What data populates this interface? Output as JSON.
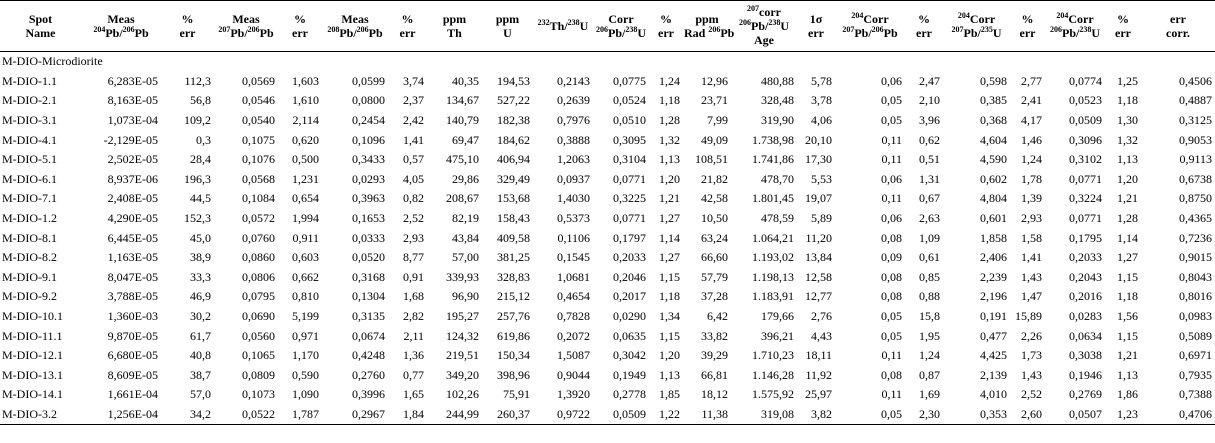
{
  "header": {
    "spot_name": [
      "Spot",
      "Name"
    ],
    "meas_204_206": {
      "top": "Meas",
      "sup1": "204",
      "mid": "Pb/",
      "sup2": "206",
      "end": "Pb"
    },
    "pct_err_1": [
      "%",
      "err"
    ],
    "meas_207_206": {
      "top": "Meas",
      "sup1": "207",
      "mid": "Pb/",
      "sup2": "206",
      "end": "Pb"
    },
    "pct_err_2": [
      "%",
      "err"
    ],
    "meas_208_206": {
      "top": "Meas",
      "sup1": "208",
      "mid": "Pb/",
      "sup2": "206",
      "end": "Pb"
    },
    "pct_err_3": [
      "%",
      "err"
    ],
    "ppm_th": [
      "ppm",
      "Th"
    ],
    "ppm_u": [
      "ppm",
      "U"
    ],
    "th_u": {
      "sup1": "232",
      "mid": "Th/",
      "sup2": "238",
      "end": "U"
    },
    "corr_206_238": {
      "top": "Corr",
      "sup1": "206",
      "mid": "Pb/",
      "sup2": "238",
      "end": "U"
    },
    "pct_err_4": [
      "%",
      "err"
    ],
    "ppm_rad": {
      "top": "ppm",
      "pre": "Rad ",
      "sup1": "206",
      "end": "Pb"
    },
    "age": {
      "sup0": "207",
      "top": "corr",
      "sup1": "206",
      "mid": "Pb/",
      "sup2": "238",
      "end": "U",
      "bottom": "Age"
    },
    "one_sigma": [
      "1σ",
      "err"
    ],
    "c204_207_206": {
      "sup0": "204",
      "top": "Corr",
      "sup1": "207",
      "mid": "Pb/",
      "sup2": "206",
      "end": "Pb"
    },
    "pct_err_5": [
      "%",
      "err"
    ],
    "c204_207_235": {
      "sup0": "204",
      "top": "Corr",
      "sup1": "207",
      "mid": "Pb/",
      "sup2": "235",
      "end": "U"
    },
    "pct_err_6": [
      "%",
      "err"
    ],
    "c204_206_238": {
      "sup0": "204",
      "top": "Corr",
      "sup1": "206",
      "mid": "Pb/",
      "sup2": "238",
      "end": "U"
    },
    "pct_err_7": [
      "%",
      "err"
    ],
    "err_corr": [
      "err",
      "corr."
    ]
  },
  "group_label": "M-DIO-Microdiorite",
  "rows": [
    [
      "M-DIO-1.1",
      "6,283E-05",
      "112,3",
      "0,0569",
      "1,603",
      "0,0599",
      "3,74",
      "40,35",
      "194,53",
      "0,2143",
      "0,0775",
      "1,24",
      "12,96",
      "480,88",
      "5,78",
      "0,06",
      "2,47",
      "0,598",
      "2,77",
      "0,0774",
      "1,25",
      "0,4506"
    ],
    [
      "M-DIO-2.1",
      "8,163E-05",
      "56,8",
      "0,0546",
      "1,610",
      "0,0800",
      "2,37",
      "134,67",
      "527,22",
      "0,2639",
      "0,0524",
      "1,18",
      "23,71",
      "328,48",
      "3,78",
      "0,05",
      "2,10",
      "0,385",
      "2,41",
      "0,0523",
      "1,18",
      "0,4887"
    ],
    [
      "M-DIO-3.1",
      "1,073E-04",
      "109,2",
      "0,0540",
      "2,114",
      "0,2454",
      "2,42",
      "140,79",
      "182,38",
      "0,7976",
      "0,0510",
      "1,28",
      "7,99",
      "319,90",
      "4,06",
      "0,05",
      "3,96",
      "0,368",
      "4,17",
      "0,0509",
      "1,30",
      "0,3125"
    ],
    [
      "M-DIO-4.1",
      "-2,129E-05",
      "0,3",
      "0,1075",
      "0,620",
      "0,1096",
      "1,41",
      "69,47",
      "184,62",
      "0,3888",
      "0,3095",
      "1,32",
      "49,09",
      "1.738,98",
      "20,10",
      "0,11",
      "0,62",
      "4,604",
      "1,46",
      "0,3096",
      "1,32",
      "0,9053"
    ],
    [
      "M-DIO-5.1",
      "2,502E-05",
      "28,4",
      "0,1076",
      "0,500",
      "0,3433",
      "0,57",
      "475,10",
      "406,94",
      "1,2063",
      "0,3104",
      "1,13",
      "108,51",
      "1.741,86",
      "17,30",
      "0,11",
      "0,51",
      "4,590",
      "1,24",
      "0,3102",
      "1,13",
      "0,9113"
    ],
    [
      "M-DIO-6.1",
      "8,937E-06",
      "196,3",
      "0,0568",
      "1,231",
      "0,0293",
      "4,05",
      "29,86",
      "329,49",
      "0,0937",
      "0,0771",
      "1,20",
      "21,82",
      "478,70",
      "5,53",
      "0,06",
      "1,31",
      "0,602",
      "1,78",
      "0,0771",
      "1,20",
      "0,6738"
    ],
    [
      "M-DIO-7.1",
      "2,408E-05",
      "44,5",
      "0,1084",
      "0,654",
      "0,3963",
      "0,82",
      "208,67",
      "153,68",
      "1,4030",
      "0,3225",
      "1,21",
      "42,58",
      "1.801,45",
      "19,07",
      "0,11",
      "0,67",
      "4,804",
      "1,39",
      "0,3224",
      "1,21",
      "0,8750"
    ],
    [
      "M-DIO-1.2",
      "4,290E-05",
      "152,3",
      "0,0572",
      "1,994",
      "0,1653",
      "2,52",
      "82,19",
      "158,43",
      "0,5373",
      "0,0771",
      "1,27",
      "10,50",
      "478,59",
      "5,89",
      "0,06",
      "2,63",
      "0,601",
      "2,93",
      "0,0771",
      "1,28",
      "0,4365"
    ],
    [
      "M-DIO-8.1",
      "6,445E-05",
      "45,0",
      "0,0760",
      "0,911",
      "0,0333",
      "2,93",
      "43,84",
      "409,58",
      "0,1106",
      "0,1797",
      "1,14",
      "63,24",
      "1.064,21",
      "11,20",
      "0,08",
      "1,09",
      "1,858",
      "1,58",
      "0,1795",
      "1,14",
      "0,7236"
    ],
    [
      "M-DIO-8.2",
      "1,163E-05",
      "38,9",
      "0,0860",
      "0,603",
      "0,0520",
      "8,77",
      "57,00",
      "381,25",
      "0,1545",
      "0,2033",
      "1,27",
      "66,60",
      "1.193,02",
      "13,84",
      "0,09",
      "0,61",
      "2,406",
      "1,41",
      "0,2033",
      "1,27",
      "0,9015"
    ],
    [
      "M-DIO-9.1",
      "8,047E-05",
      "33,3",
      "0,0806",
      "0,662",
      "0,3168",
      "0,91",
      "339,93",
      "328,83",
      "1,0681",
      "0,2046",
      "1,15",
      "57,79",
      "1.198,13",
      "12,58",
      "0,08",
      "0,85",
      "2,239",
      "1,43",
      "0,2043",
      "1,15",
      "0,8043"
    ],
    [
      "M-DIO-9.2",
      "3,788E-05",
      "46,9",
      "0,0795",
      "0,810",
      "0,1304",
      "1,68",
      "96,90",
      "215,12",
      "0,4654",
      "0,2017",
      "1,18",
      "37,28",
      "1.183,91",
      "12,77",
      "0,08",
      "0,88",
      "2,196",
      "1,47",
      "0,2016",
      "1,18",
      "0,8016"
    ],
    [
      "M-DIO-10.1",
      "1,360E-03",
      "30,2",
      "0,0690",
      "5,199",
      "0,3135",
      "2,82",
      "195,27",
      "257,76",
      "0,7828",
      "0,0290",
      "1,34",
      "6,42",
      "179,66",
      "2,76",
      "0,05",
      "15,8",
      "0,191",
      "15,89",
      "0,0283",
      "1,56",
      "0,0983"
    ],
    [
      "M-DIO-11.1",
      "9,870E-05",
      "61,7",
      "0,0560",
      "0,971",
      "0,0674",
      "2,11",
      "124,32",
      "619,86",
      "0,2072",
      "0,0635",
      "1,15",
      "33,82",
      "396,21",
      "4,43",
      "0,05",
      "1,95",
      "0,477",
      "2,26",
      "0,0634",
      "1,15",
      "0,5089"
    ],
    [
      "M-DIO-12.1",
      "6,680E-05",
      "40,8",
      "0,1065",
      "1,170",
      "0,4248",
      "1,36",
      "219,51",
      "150,34",
      "1,5087",
      "0,3042",
      "1,20",
      "39,29",
      "1.710,23",
      "18,11",
      "0,11",
      "1,24",
      "4,425",
      "1,73",
      "0,3038",
      "1,21",
      "0,6971"
    ],
    [
      "M-DIO-13.1",
      "8,609E-05",
      "38,7",
      "0,0809",
      "0,590",
      "0,2760",
      "0,77",
      "349,20",
      "398,96",
      "0,9044",
      "0,1949",
      "1,13",
      "66,81",
      "1.146,28",
      "11,92",
      "0,08",
      "0,87",
      "2,139",
      "1,43",
      "0,1946",
      "1,13",
      "0,7935"
    ],
    [
      "M-DIO-14.1",
      "1,661E-04",
      "57,0",
      "0,1073",
      "1,090",
      "0,3996",
      "1,65",
      "102,26",
      "75,91",
      "1,3920",
      "0,2778",
      "1,85",
      "18,12",
      "1.575,92",
      "25,97",
      "0,11",
      "1,69",
      "4,010",
      "2,52",
      "0,2769",
      "1,86",
      "0,7388"
    ],
    [
      "M-DIO-3.2",
      "1,256E-04",
      "34,2",
      "0,0522",
      "1,787",
      "0,2967",
      "1,84",
      "244,99",
      "260,37",
      "0,9722",
      "0,0509",
      "1,22",
      "11,38",
      "319,08",
      "3,82",
      "0,05",
      "2,30",
      "0,353",
      "2,60",
      "0,0507",
      "1,23",
      "0,4706"
    ]
  ]
}
